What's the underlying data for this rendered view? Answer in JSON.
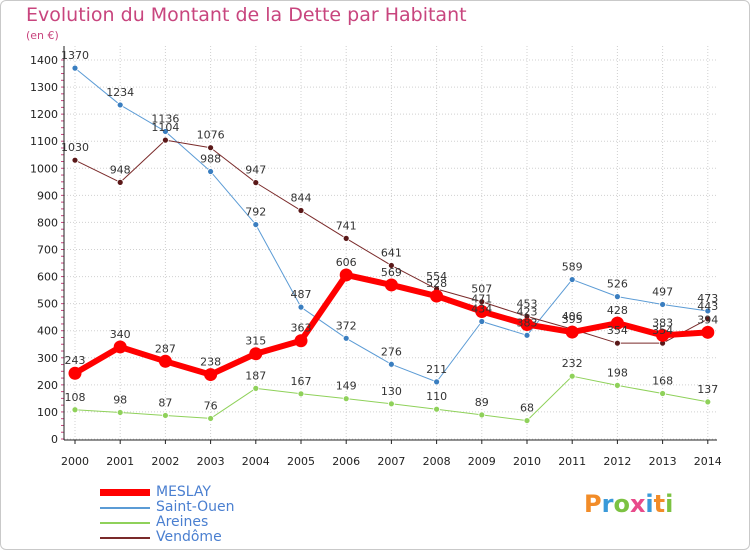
{
  "page": {
    "title": "Evolution du Montant de la Dette par Habitant",
    "unit": "(en €)",
    "logo": "Proxiti"
  },
  "colors": {
    "title": "#c8457e",
    "legend_text": "#4a7fd0",
    "grid": "#d0d0d0",
    "axis": "#222222"
  },
  "chart_data": {
    "type": "line",
    "x": [
      "2000",
      "2001",
      "2002",
      "2003",
      "2004",
      "2005",
      "2006",
      "2007",
      "2008",
      "2009",
      "2010",
      "2011",
      "2012",
      "2013",
      "2014"
    ],
    "ylim": [
      0,
      1400
    ],
    "yticks": [
      0,
      100,
      200,
      300,
      400,
      500,
      600,
      700,
      800,
      900,
      1000,
      1100,
      1200,
      1300,
      1400
    ],
    "grid": true,
    "legend_position": "bottom-left",
    "series": [
      {
        "name": "Saint-Ouen",
        "color": "#5b9bd5",
        "marker_color": "#3a7ec0",
        "width": 1,
        "values": [
          1370,
          1234,
          1136,
          988,
          792,
          487,
          372,
          276,
          211,
          434,
          383,
          589,
          526,
          497,
          473
        ]
      },
      {
        "name": "Areines",
        "color": "#8fd15a",
        "marker_color": "#8fd15a",
        "width": 1,
        "values": [
          108,
          98,
          87,
          76,
          187,
          167,
          149,
          130,
          110,
          89,
          68,
          232,
          198,
          168,
          137
        ]
      },
      {
        "name": "Vendôme",
        "color": "#7a2a2a",
        "marker_color": "#5a1818",
        "width": 1,
        "values": [
          1030,
          948,
          1104,
          1076,
          947,
          844,
          741,
          641,
          554,
          507,
          453,
          406,
          354,
          354,
          443
        ]
      },
      {
        "name": "MESLAY",
        "color": "#ff0000",
        "marker_color": "#ff0000",
        "width": 6,
        "values": [
          243,
          340,
          287,
          238,
          315,
          363,
          606,
          569,
          528,
          471,
          423,
          395,
          428,
          383,
          394
        ]
      }
    ]
  }
}
